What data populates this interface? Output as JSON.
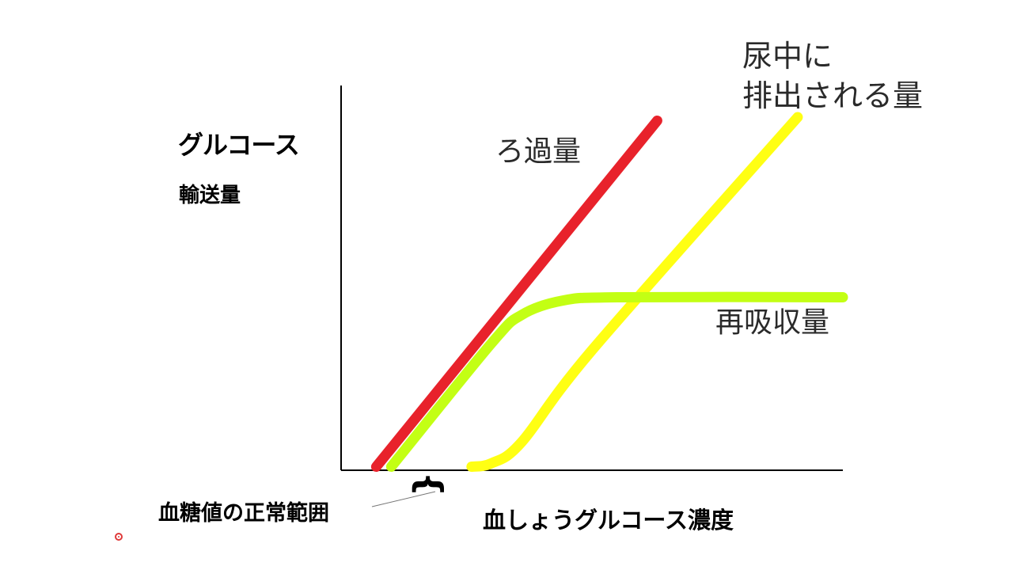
{
  "chart_data": {
    "type": "line",
    "title": "",
    "ylabel_line1": "グルコース",
    "ylabel_line2": "輸送量",
    "xlabel": "血しょうグルコース濃度",
    "annotation": "血糖値の正常範囲",
    "xlim": [
      0,
      100
    ],
    "ylim": [
      0,
      100
    ],
    "grid": false,
    "series": [
      {
        "name": "ろ過量",
        "color": "#e8222b",
        "points": [
          [
            7,
            1
          ],
          [
            63,
            99
          ]
        ]
      },
      {
        "name": "再吸収量",
        "color": "#c3ff14",
        "points": [
          [
            10,
            1
          ],
          [
            30,
            36
          ],
          [
            36,
            44
          ],
          [
            44,
            48
          ],
          [
            55,
            49
          ],
          [
            100,
            49
          ]
        ]
      },
      {
        "name": "尿中に排出される量",
        "name_line1": "尿中に",
        "name_line2": "排出される量",
        "color": "#ffff13",
        "points": [
          [
            26,
            1
          ],
          [
            30,
            2
          ],
          [
            36,
            8
          ],
          [
            50,
            34
          ],
          [
            91,
            100
          ]
        ]
      }
    ]
  }
}
